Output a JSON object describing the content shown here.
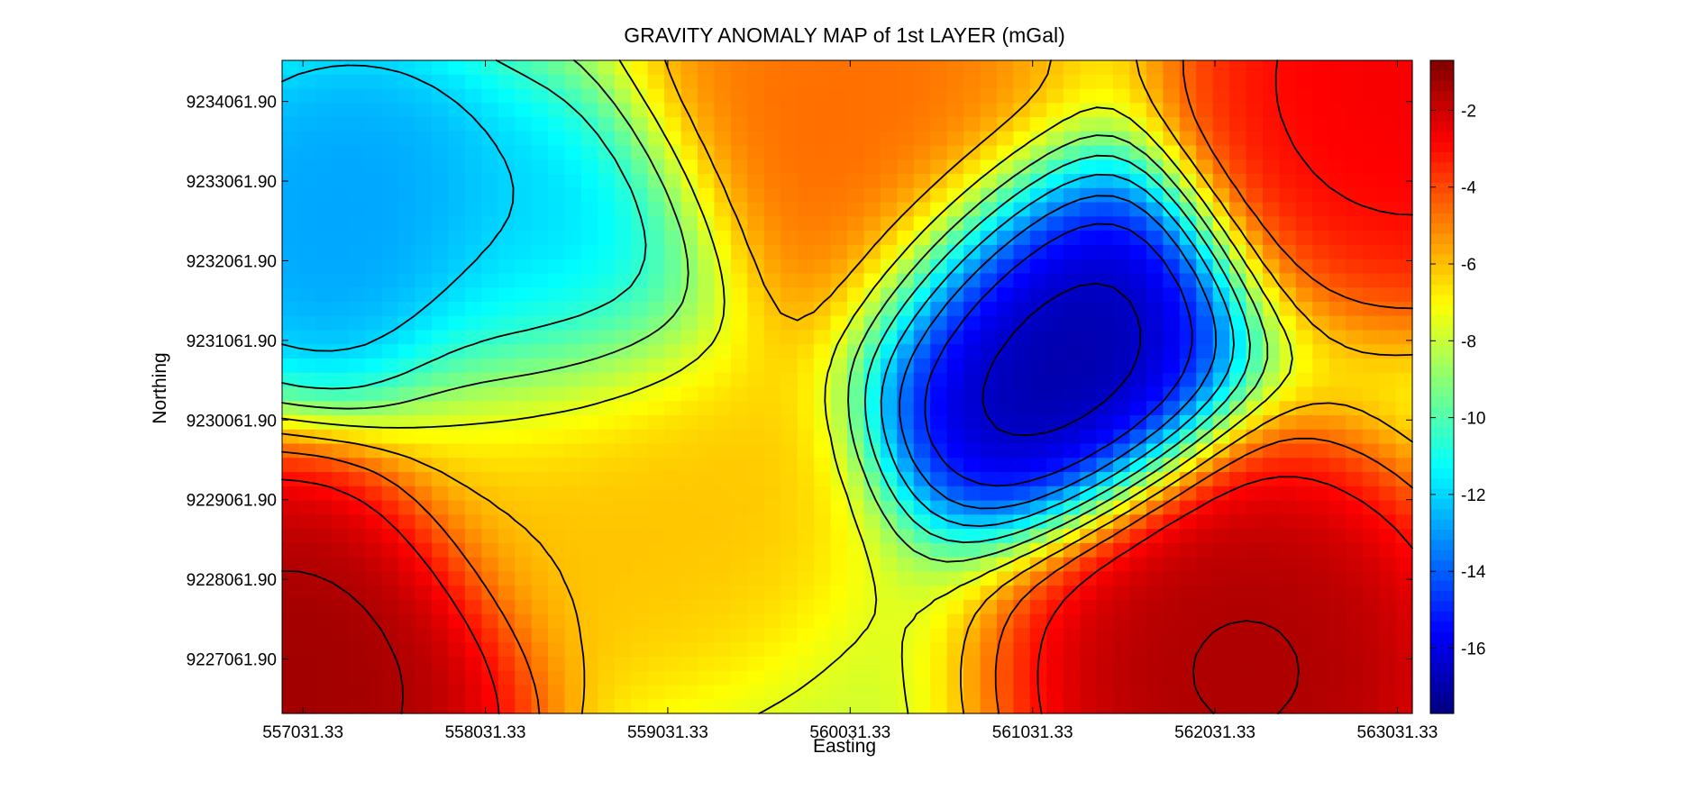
{
  "chart_data": {
    "type": "heatmap",
    "title": "GRAVITY ANOMALY MAP of 1st LAYER (mGal)",
    "xlabel": "Easting",
    "ylabel": "Northing",
    "x_ticks": [
      {
        "value": 557031.33,
        "label": "557031.33"
      },
      {
        "value": 558031.33,
        "label": "558031.33"
      },
      {
        "value": 559031.33,
        "label": "559031.33"
      },
      {
        "value": 560031.33,
        "label": "560031.33"
      },
      {
        "value": 561031.33,
        "label": "561031.33"
      },
      {
        "value": 562031.33,
        "label": "562031.33"
      },
      {
        "value": 563031.33,
        "label": "563031.33"
      }
    ],
    "y_ticks": [
      {
        "value": 9234061.9,
        "label": "9234061.90"
      },
      {
        "value": 9233061.9,
        "label": "9233061.90"
      },
      {
        "value": 9232061.9,
        "label": "9232061.90"
      },
      {
        "value": 9231061.9,
        "label": "9231061.90"
      },
      {
        "value": 9230061.9,
        "label": "9230061.90"
      },
      {
        "value": 9229061.9,
        "label": "9229061.90"
      },
      {
        "value": 9228061.9,
        "label": "9228061.90"
      },
      {
        "value": 9227061.9,
        "label": "9227061.90"
      }
    ],
    "xlim": [
      556917,
      563113
    ],
    "ylim": [
      9226378,
      9234578
    ],
    "colorbar": {
      "colormap": "jet",
      "range": [
        -17.7,
        -0.7
      ],
      "ticks": [
        {
          "value": -2,
          "label": "-2"
        },
        {
          "value": -4,
          "label": "-4"
        },
        {
          "value": -6,
          "label": "-6"
        },
        {
          "value": -8,
          "label": "-8"
        },
        {
          "value": -10,
          "label": "-10"
        },
        {
          "value": -12,
          "label": "-12"
        },
        {
          "value": -14,
          "label": "-14"
        },
        {
          "value": -16,
          "label": "-16"
        }
      ]
    },
    "contour_interval": 1.5,
    "features": [
      {
        "kind": "min",
        "x": 561031,
        "y": 9231100,
        "value": -17.5
      },
      {
        "kind": "min",
        "x": 557300,
        "y": 9232600,
        "value": -13.0
      },
      {
        "kind": "min",
        "x": 558500,
        "y": 9231900,
        "value": -12.3
      },
      {
        "kind": "max",
        "x": 557000,
        "y": 9226800,
        "value": -1.0
      },
      {
        "kind": "max",
        "x": 562200,
        "y": 9226900,
        "value": -1.2
      },
      {
        "kind": "max",
        "x": 563100,
        "y": 9234300,
        "value": -2.5
      },
      {
        "kind": "max",
        "x": 560000,
        "y": 9233300,
        "value": -4.5
      },
      {
        "kind": "max",
        "x": 558800,
        "y": 9229600,
        "value": -6.0
      }
    ]
  }
}
